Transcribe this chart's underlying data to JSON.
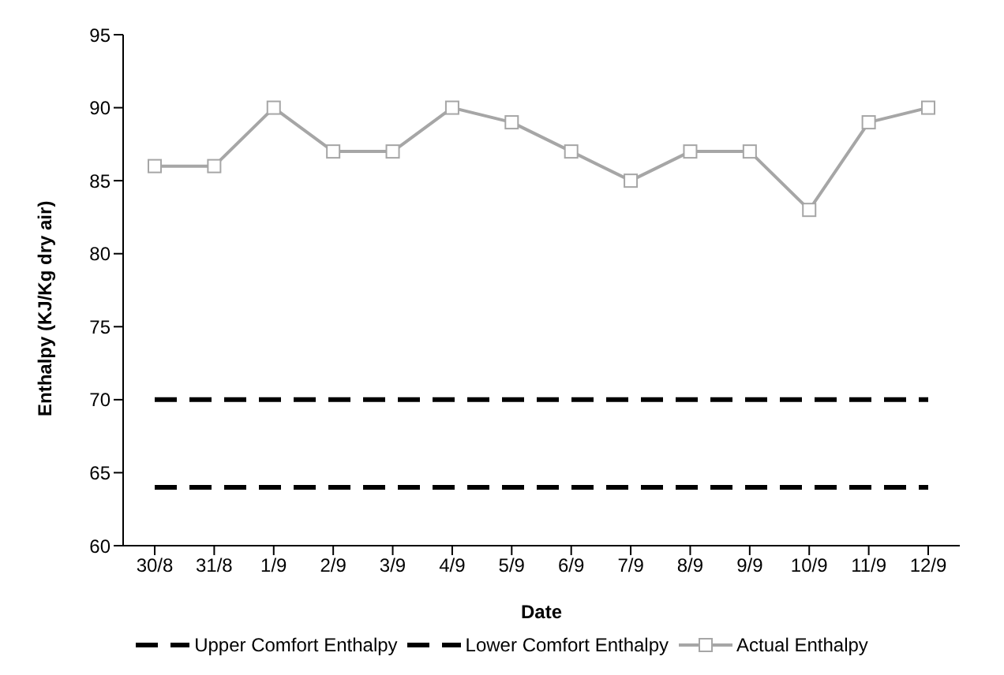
{
  "chart_data": {
    "type": "line",
    "xlabel": "Date",
    "ylabel": "Enthalpy (KJ/Kg dry air)",
    "categories": [
      "30/8",
      "31/8",
      "1/9",
      "2/9",
      "3/9",
      "4/9",
      "5/9",
      "6/9",
      "7/9",
      "8/9",
      "9/9",
      "10/9",
      "11/9",
      "12/9"
    ],
    "series": [
      {
        "name": "Upper Comfort Enthalpy",
        "color": "#000000",
        "line_style": "dashed",
        "marker": "none",
        "values": [
          70,
          70,
          70,
          70,
          70,
          70,
          70,
          70,
          70,
          70,
          70,
          70,
          70,
          70
        ]
      },
      {
        "name": "Lower Comfort Enthalpy",
        "color": "#000000",
        "line_style": "dashed",
        "marker": "none",
        "values": [
          64,
          64,
          64,
          64,
          64,
          64,
          64,
          64,
          64,
          64,
          64,
          64,
          64,
          64
        ]
      },
      {
        "name": "Actual Enthalpy",
        "color": "#a6a6a6",
        "line_style": "solid",
        "marker": "square",
        "values": [
          86,
          86,
          90,
          87,
          87,
          90,
          89,
          87,
          85,
          87,
          87,
          83,
          89,
          90
        ]
      }
    ],
    "ylim": [
      60,
      95
    ],
    "yticks": [
      60,
      65,
      70,
      75,
      80,
      85,
      90,
      95
    ],
    "grid": false,
    "legend": "bottom"
  }
}
